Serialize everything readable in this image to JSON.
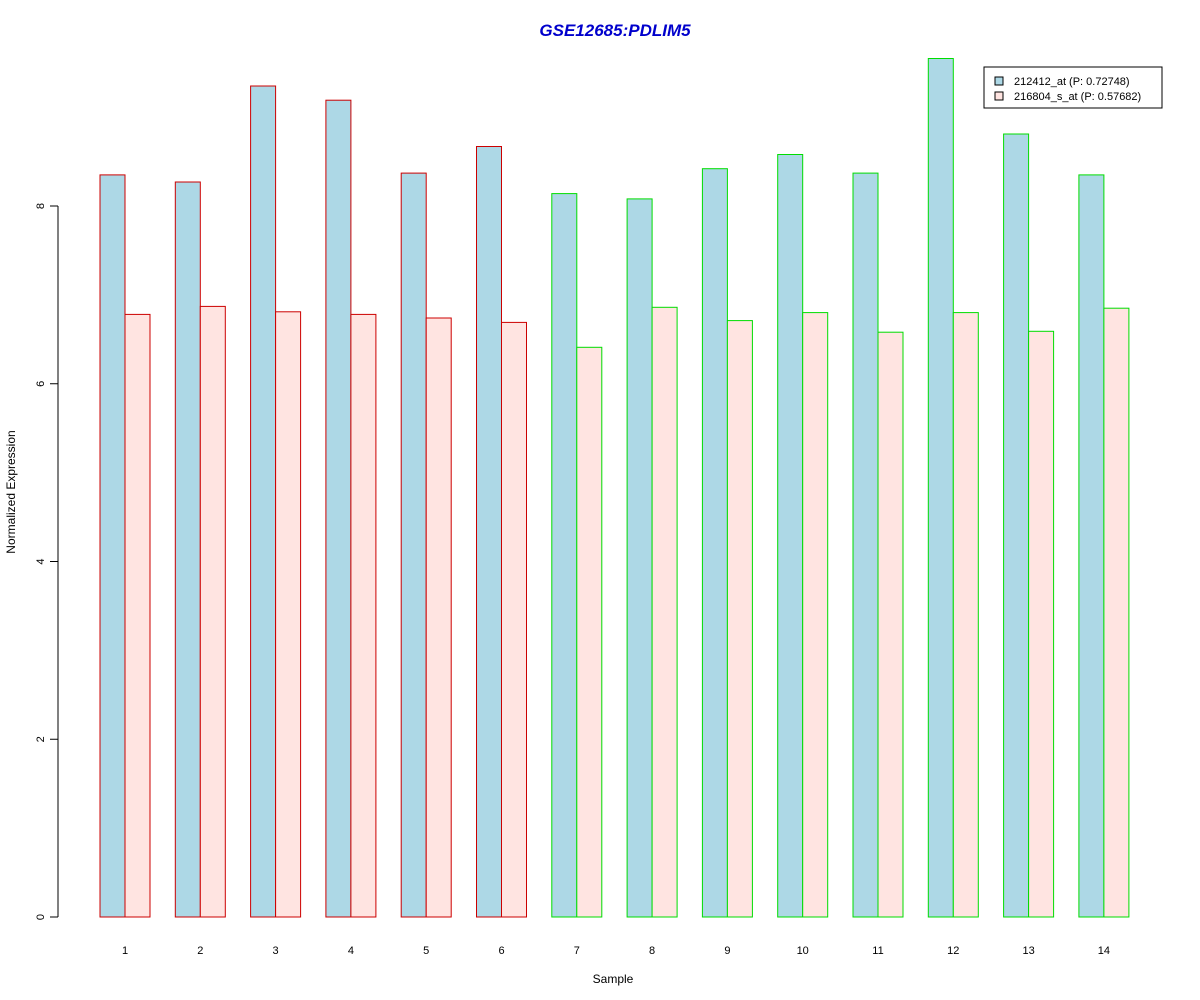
{
  "chart_data": {
    "type": "bar",
    "title": "GSE12685:PDLIM5",
    "xlabel": "Sample",
    "ylabel": "Normalized Expression",
    "categories": [
      "1",
      "2",
      "3",
      "4",
      "5",
      "6",
      "7",
      "8",
      "9",
      "10",
      "11",
      "12",
      "13",
      "14"
    ],
    "ylim": [
      0,
      9.7
    ],
    "yticks": [
      0,
      2,
      4,
      6,
      8
    ],
    "yticks_labels": [
      "0",
      "2",
      "4",
      "6",
      "8"
    ],
    "series": [
      {
        "name": "212412_at (P: 0.72748)",
        "fill": "#add8e6",
        "values": [
          8.35,
          8.27,
          9.35,
          9.19,
          8.37,
          8.67,
          8.14,
          8.08,
          8.42,
          8.58,
          8.37,
          9.66,
          8.81,
          8.35
        ]
      },
      {
        "name": "216804_s_at (P: 0.57682)",
        "fill": "#ffe4e1",
        "values": [
          6.78,
          6.87,
          6.81,
          6.78,
          6.74,
          6.69,
          6.41,
          6.86,
          6.71,
          6.8,
          6.58,
          6.8,
          6.59,
          6.85
        ]
      }
    ],
    "group_border_colors": [
      "#cc0000",
      "#cc0000",
      "#cc0000",
      "#cc0000",
      "#cc0000",
      "#cc0000",
      "#00dd00",
      "#00dd00",
      "#00dd00",
      "#00dd00",
      "#00dd00",
      "#00dd00",
      "#00dd00",
      "#00dd00"
    ],
    "legend_position": "top-right",
    "grid": false
  }
}
